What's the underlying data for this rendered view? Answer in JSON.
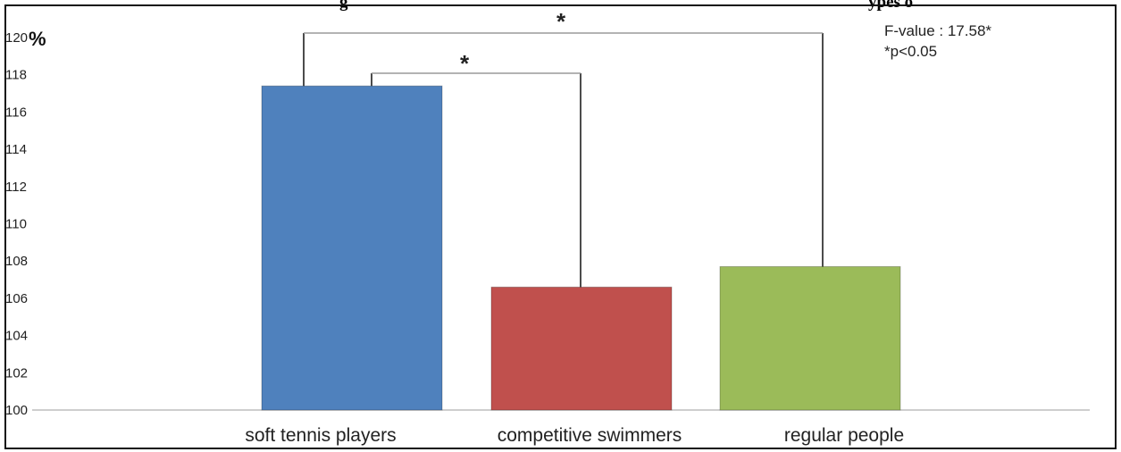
{
  "chart_data": {
    "type": "bar",
    "title": "",
    "title_partial": "g",
    "title_partial_right": "ypes o",
    "ylabel": "%",
    "xlabel": "",
    "ylim": [
      100,
      120
    ],
    "yticks": [
      "100",
      "102",
      "104",
      "106",
      "108",
      "110",
      "112",
      "114",
      "116",
      "118",
      "120"
    ],
    "categories": [
      "soft tennis players",
      "competitive swimmers",
      "regular people"
    ],
    "values": [
      117.4,
      106.6,
      107.7
    ],
    "colors": [
      "#4f81bd",
      "#c0504d",
      "#9bbb59"
    ],
    "grid": false,
    "annotations": {
      "f_value": "F-value : 17.58*",
      "p_note": "*p<0.05",
      "significance_marks": [
        {
          "from": "soft tennis players",
          "to": "competitive swimmers",
          "label": "*"
        },
        {
          "from": "soft tennis players",
          "to": "regular people",
          "label": "*"
        }
      ]
    }
  }
}
